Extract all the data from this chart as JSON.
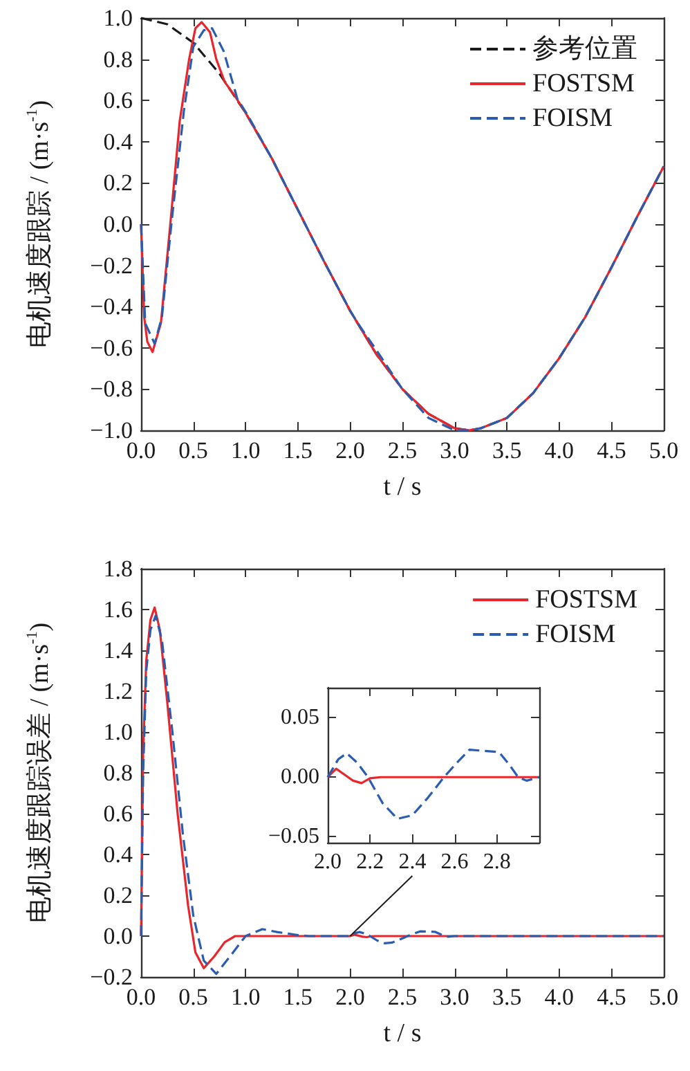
{
  "chart_data": [
    {
      "type": "line",
      "xlabel": "t / s",
      "ylabel": "电机速度跟踪 / (m·s$^{-1}$)",
      "xlim": [
        0,
        5
      ],
      "ylim": [
        -1,
        1
      ],
      "legend": "top right",
      "xticks": [
        {
          "value": 0,
          "label": "0.0"
        },
        {
          "value": 0.5,
          "label": "0.5"
        },
        {
          "value": 1,
          "label": "1.0"
        },
        {
          "value": 1.5,
          "label": "1.5"
        },
        {
          "value": 2,
          "label": "2.0"
        },
        {
          "value": 2.5,
          "label": "2.5"
        },
        {
          "value": 3,
          "label": "3.0"
        },
        {
          "value": 3.5,
          "label": "3.5"
        },
        {
          "value": 4,
          "label": "4.0"
        },
        {
          "value": 4.5,
          "label": "4.5"
        },
        {
          "value": 5,
          "label": "5.0"
        }
      ],
      "yticks": [
        {
          "value": -1,
          "label": "−1.0"
        },
        {
          "value": -0.8,
          "label": "−0.8"
        },
        {
          "value": -0.6,
          "label": "−0.6"
        },
        {
          "value": -0.4,
          "label": "−0.4"
        },
        {
          "value": -0.2,
          "label": "−0.2"
        },
        {
          "value": 0,
          "label": "0.0"
        },
        {
          "value": 0.2,
          "label": "0.2"
        },
        {
          "value": 0.4,
          "label": "0.4"
        },
        {
          "value": 0.6,
          "label": "0.6"
        },
        {
          "value": 0.8,
          "label": "0.8"
        },
        {
          "value": 1,
          "label": "1.0"
        }
      ],
      "series": [
        {
          "name": "参考位置",
          "color": "#1a1a1a",
          "line_style": "dashed",
          "x": [
            0,
            0.25,
            0.5,
            0.75,
            1,
            1.25,
            1.5,
            1.75,
            2,
            2.25,
            2.5,
            2.75,
            3,
            3.14,
            3.25,
            3.5,
            3.75,
            4,
            4.25,
            4.5,
            4.75,
            5
          ],
          "values": [
            1.0,
            0.97,
            0.88,
            0.73,
            0.54,
            0.32,
            0.07,
            -0.18,
            -0.42,
            -0.63,
            -0.8,
            -0.92,
            -0.99,
            -1.0,
            -0.99,
            -0.94,
            -0.82,
            -0.65,
            -0.45,
            -0.21,
            0.04,
            0.28
          ]
        },
        {
          "name": "FOSTSM",
          "color": "#e8262b",
          "line_style": "solid",
          "x": [
            0,
            0.03,
            0.06,
            0.11,
            0.19,
            0.28,
            0.37,
            0.46,
            0.52,
            0.58,
            0.66,
            0.72,
            0.8,
            0.9,
            1.0,
            1.25,
            1.5,
            1.75,
            2,
            2.25,
            2.5,
            2.75,
            3,
            3.14,
            3.25,
            3.5,
            3.75,
            4,
            4.25,
            4.5,
            4.75,
            5
          ],
          "values": [
            0,
            -0.45,
            -0.57,
            -0.62,
            -0.48,
            0,
            0.5,
            0.8,
            0.95,
            0.98,
            0.93,
            0.8,
            0.69,
            0.62,
            0.54,
            0.32,
            0.07,
            -0.18,
            -0.42,
            -0.63,
            -0.8,
            -0.92,
            -0.99,
            -1.0,
            -0.99,
            -0.94,
            -0.82,
            -0.65,
            -0.45,
            -0.21,
            0.04,
            0.28
          ]
        },
        {
          "name": "FOISM",
          "color": "#2a5db0",
          "line_style": "dashed",
          "x": [
            0,
            0.04,
            0.13,
            0.2,
            0.29,
            0.41,
            0.5,
            0.6,
            0.68,
            0.79,
            0.92,
            1.03,
            1.25,
            1.5,
            1.75,
            2,
            2.1,
            2.25,
            2.5,
            2.75,
            3,
            3.14,
            3.25,
            3.5,
            3.75,
            4,
            4.25,
            4.5,
            4.75,
            5
          ],
          "values": [
            0,
            -0.48,
            -0.58,
            -0.45,
            0,
            0.55,
            0.86,
            0.94,
            0.95,
            0.84,
            0.61,
            0.52,
            0.32,
            0.07,
            -0.18,
            -0.42,
            -0.5,
            -0.61,
            -0.8,
            -0.94,
            -1.0,
            -1.0,
            -0.99,
            -0.94,
            -0.82,
            -0.65,
            -0.45,
            -0.21,
            0.04,
            0.28
          ]
        }
      ]
    },
    {
      "type": "line",
      "xlabel": "t / s",
      "ylabel": "电机速度跟踪误差 / (m·s$^{-1}$)",
      "xlim": [
        0,
        5
      ],
      "ylim": [
        -0.2,
        1.8
      ],
      "legend": "top right",
      "xticks": [
        {
          "value": 0,
          "label": "0.0"
        },
        {
          "value": 0.5,
          "label": "0.5"
        },
        {
          "value": 1,
          "label": "1.0"
        },
        {
          "value": 1.5,
          "label": "1.5"
        },
        {
          "value": 2,
          "label": "2.0"
        },
        {
          "value": 2.5,
          "label": "2.5"
        },
        {
          "value": 3,
          "label": "3.0"
        },
        {
          "value": 3.5,
          "label": "3.5"
        },
        {
          "value": 4,
          "label": "4.0"
        },
        {
          "value": 4.5,
          "label": "4.5"
        },
        {
          "value": 5,
          "label": "5.0"
        }
      ],
      "yticks": [
        {
          "value": -0.2,
          "label": "−0.2"
        },
        {
          "value": 0,
          "label": "0.0"
        },
        {
          "value": 0.2,
          "label": "0.2"
        },
        {
          "value": 0.4,
          "label": "0.4"
        },
        {
          "value": 0.6,
          "label": "0.6"
        },
        {
          "value": 0.8,
          "label": "0.8"
        },
        {
          "value": 1,
          "label": "1.0"
        },
        {
          "value": 1.2,
          "label": "1.2"
        },
        {
          "value": 1.4,
          "label": "1.4"
        },
        {
          "value": 1.6,
          "label": "1.6"
        },
        {
          "value": 1.8,
          "label": "1.8"
        }
      ],
      "series": [
        {
          "name": "FOSTSM",
          "color": "#e8262b",
          "line_style": "solid",
          "x": [
            0,
            0.02,
            0.05,
            0.09,
            0.13,
            0.18,
            0.25,
            0.35,
            0.45,
            0.52,
            0.6,
            0.7,
            0.8,
            0.9,
            2.0,
            2.04,
            2.08,
            2.12,
            2.16,
            2.2,
            2.25,
            5.0
          ],
          "values": [
            0,
            0.9,
            1.35,
            1.55,
            1.61,
            1.5,
            1.15,
            0.6,
            0.15,
            -0.08,
            -0.157,
            -0.1,
            -0.03,
            0,
            0,
            0.007,
            0.002,
            -0.003,
            -0.005,
            -0.001,
            0,
            0
          ]
        },
        {
          "name": "FOISM",
          "color": "#2a5db0",
          "line_style": "dashed",
          "x": [
            0,
            0.02,
            0.05,
            0.09,
            0.14,
            0.2,
            0.3,
            0.4,
            0.5,
            0.6,
            0.72,
            0.85,
            1.0,
            1.16,
            1.3,
            1.5,
            1.6,
            2.0,
            2.05,
            2.09,
            2.14,
            2.19,
            2.26,
            2.33,
            2.4,
            2.47,
            2.55,
            2.61,
            2.67,
            2.74,
            2.81,
            2.86,
            2.9,
            2.94,
            3.0,
            5.0
          ],
          "values": [
            0,
            0.8,
            1.3,
            1.5,
            1.57,
            1.45,
            1.0,
            0.5,
            0.1,
            -0.12,
            -0.185,
            -0.1,
            0,
            0.034,
            0.02,
            0.005,
            0,
            0,
            0.015,
            0.02,
            0.012,
            0,
            -0.022,
            -0.035,
            -0.032,
            -0.018,
            0,
            0.012,
            0.023,
            0.022,
            0.021,
            0.01,
            0,
            -0.003,
            0,
            0
          ]
        }
      ]
    },
    {
      "type": "line",
      "xlim": [
        2,
        3
      ],
      "ylim": [
        -0.055,
        0.075
      ],
      "xticks": [
        {
          "value": 2,
          "label": "2.0"
        },
        {
          "value": 2.2,
          "label": "2.2"
        },
        {
          "value": 2.4,
          "label": "2.4"
        },
        {
          "value": 2.6,
          "label": "2.6"
        },
        {
          "value": 2.8,
          "label": "2.8"
        }
      ],
      "yticks": [
        {
          "value": -0.05,
          "label": "−0.05"
        },
        {
          "value": 0,
          "label": "0.00"
        },
        {
          "value": 0.05,
          "label": "0.05"
        }
      ],
      "series": [
        {
          "color": "#e8262b",
          "line_style": "solid",
          "x": [
            2.0,
            2.04,
            2.08,
            2.12,
            2.16,
            2.2,
            2.25,
            3.0
          ],
          "values": [
            0,
            0.007,
            0.002,
            -0.003,
            -0.005,
            -0.001,
            0,
            0
          ]
        },
        {
          "color": "#2a5db0",
          "line_style": "dashed",
          "x": [
            2.0,
            2.05,
            2.09,
            2.14,
            2.19,
            2.26,
            2.33,
            2.4,
            2.47,
            2.55,
            2.61,
            2.67,
            2.74,
            2.81,
            2.86,
            2.9,
            2.94,
            3.0
          ],
          "values": [
            0,
            0.015,
            0.02,
            0.012,
            0,
            -0.022,
            -0.035,
            -0.032,
            -0.018,
            0,
            0.012,
            0.023,
            0.022,
            0.021,
            0.01,
            0,
            -0.003,
            0
          ]
        }
      ]
    }
  ]
}
